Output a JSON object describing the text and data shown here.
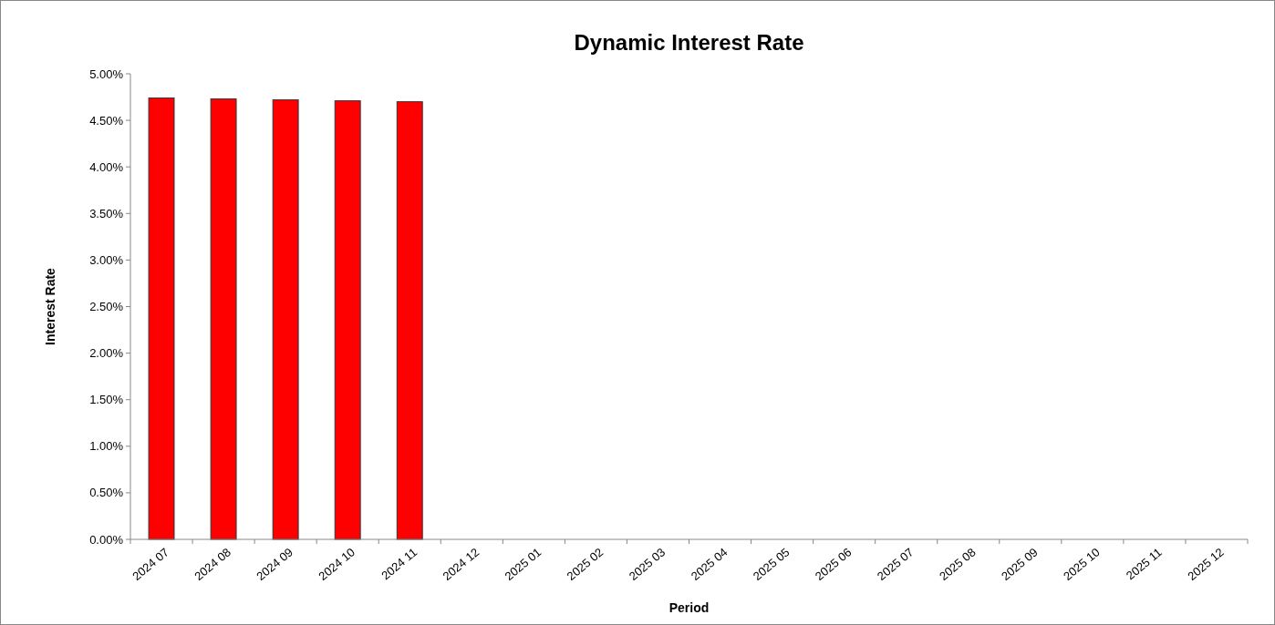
{
  "chart_data": {
    "type": "bar",
    "title": "Dynamic Interest Rate",
    "xlabel": "Period",
    "ylabel": "Interest Rate",
    "categories": [
      "2024 07",
      "2024 08",
      "2024 09",
      "2024 10",
      "2024 11",
      "2024 12",
      "2025 01",
      "2025 02",
      "2025 03",
      "2025 04",
      "2025 05",
      "2025 06",
      "2025 07",
      "2025 08",
      "2025 09",
      "2025 10",
      "2025 11",
      "2025 12"
    ],
    "values": [
      4.74,
      4.73,
      4.72,
      4.71,
      4.7,
      null,
      null,
      null,
      null,
      null,
      null,
      null,
      null,
      null,
      null,
      null,
      null,
      null
    ],
    "color": "#ff0000",
    "ylim": [
      0,
      5
    ],
    "yticks": [
      {
        "value": 0,
        "label": "0.00%"
      },
      {
        "value": 0.5,
        "label": "0.50%"
      },
      {
        "value": 1,
        "label": "1.00%"
      },
      {
        "value": 1.5,
        "label": "1.50%"
      },
      {
        "value": 2,
        "label": "2.00%"
      },
      {
        "value": 2.5,
        "label": "2.50%"
      },
      {
        "value": 3,
        "label": "3.00%"
      },
      {
        "value": 3.5,
        "label": "3.50%"
      },
      {
        "value": 4,
        "label": "4.00%"
      },
      {
        "value": 4.5,
        "label": "4.50%"
      },
      {
        "value": 5,
        "label": "5.00%"
      }
    ],
    "grid": false
  }
}
